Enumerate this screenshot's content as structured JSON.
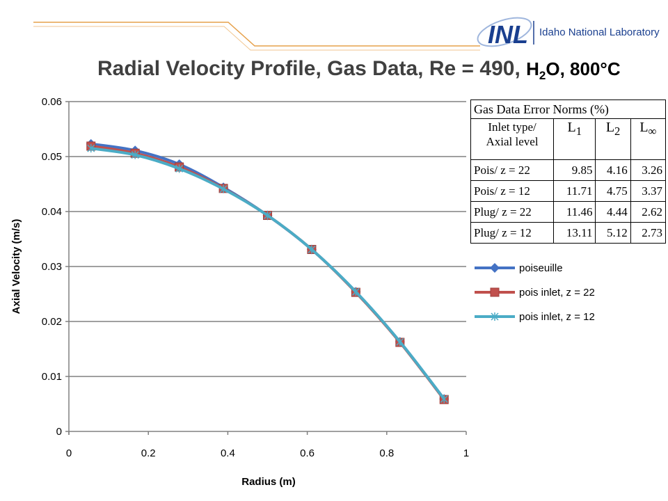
{
  "header": {
    "logo_text": "Idaho National Laboratory",
    "logo_mark": "INL"
  },
  "slide": {
    "title": "Radial Velocity Profile, Gas Data, Re = 490,",
    "title_h": "H",
    "title_sub": "2",
    "title_rest": "O, 800°C"
  },
  "colors": {
    "poiseuille": "#4472c4",
    "pois_z22": "#c0504d",
    "pois_z12": "#4bacc6",
    "grid": "#808080",
    "header_line": "#e6a04a",
    "logo_blue": "#1a3f8f"
  },
  "chart_data": {
    "type": "line",
    "xlabel": "Radius (m)",
    "ylabel": "Axial Velocity (m/s)",
    "xlim": [
      0,
      1
    ],
    "ylim": [
      0,
      0.06
    ],
    "x_ticks": [
      "0",
      "0.2",
      "0.4",
      "0.6",
      "0.8",
      "1"
    ],
    "y_ticks": [
      "0",
      "0.01",
      "0.02",
      "0.03",
      "0.04",
      "0.05",
      "0.06"
    ],
    "grid": "horizontal",
    "legend_position": "right",
    "x": [
      0.0556,
      0.1667,
      0.2778,
      0.3889,
      0.5,
      0.6111,
      0.7222,
      0.8333,
      0.9444
    ],
    "series": [
      {
        "name": "poiseuille",
        "marker": "diamond",
        "values": [
          0.0523,
          0.0511,
          0.0486,
          0.0444,
          0.0393,
          0.0331,
          0.0254,
          0.0163,
          0.0059
        ]
      },
      {
        "name": "pois inlet, z = 22",
        "marker": "square",
        "values": [
          0.0519,
          0.0506,
          0.0481,
          0.0442,
          0.0393,
          0.0331,
          0.0253,
          0.0162,
          0.0058
        ]
      },
      {
        "name": "pois inlet, z = 12",
        "marker": "star",
        "values": [
          0.0515,
          0.0503,
          0.0478,
          0.0441,
          0.0393,
          0.0331,
          0.0254,
          0.0163,
          0.0059
        ]
      }
    ]
  },
  "error_table": {
    "caption": "Gas Data Error Norms (%)",
    "header": {
      "inlet_line1": "Inlet type/",
      "inlet_line2": "Axial level",
      "l1": "L",
      "l1_sub": "1",
      "l2": "L",
      "l2_sub": "2",
      "linf": "L",
      "linf_sub": "∞"
    },
    "rows": [
      {
        "label": "Pois/ z = 22",
        "l1": "9.85",
        "l2": "4.16",
        "linf": "3.26"
      },
      {
        "label": "Pois/ z = 12",
        "l1": "11.71",
        "l2": "4.75",
        "linf": "3.37"
      },
      {
        "label": "Plug/ z = 22",
        "l1": "11.46",
        "l2": "4.44",
        "linf": "2.62"
      },
      {
        "label": "Plug/ z = 12",
        "l1": "13.11",
        "l2": "5.12",
        "linf": "2.73"
      }
    ]
  }
}
